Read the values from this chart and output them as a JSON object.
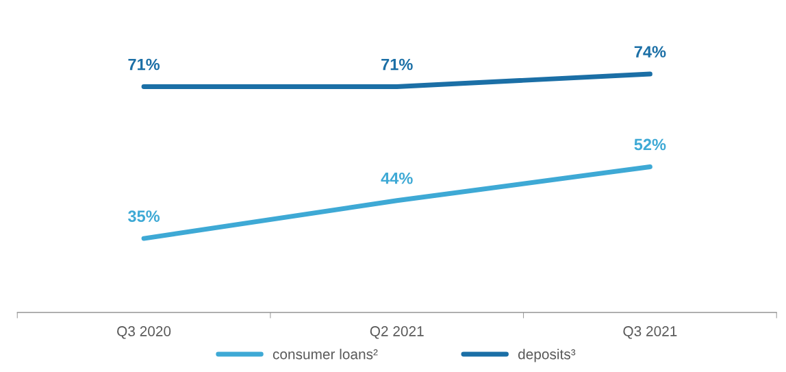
{
  "chart_data": {
    "type": "line",
    "categories": [
      "Q3 2020",
      "Q2 2021",
      "Q3 2021"
    ],
    "series": [
      {
        "name": "consumer loans²",
        "color": "#3ea9d5",
        "values": [
          35,
          44,
          52
        ],
        "value_labels": [
          "35%",
          "44%",
          "52%"
        ]
      },
      {
        "name": "deposits³",
        "color": "#1b6fa6",
        "values": [
          71,
          71,
          74
        ],
        "value_labels": [
          "71%",
          "71%",
          "74%"
        ]
      }
    ],
    "tick_labels": "x",
    "grid": false,
    "legend": "bottom",
    "marker": "none",
    "line_style": "solid"
  }
}
